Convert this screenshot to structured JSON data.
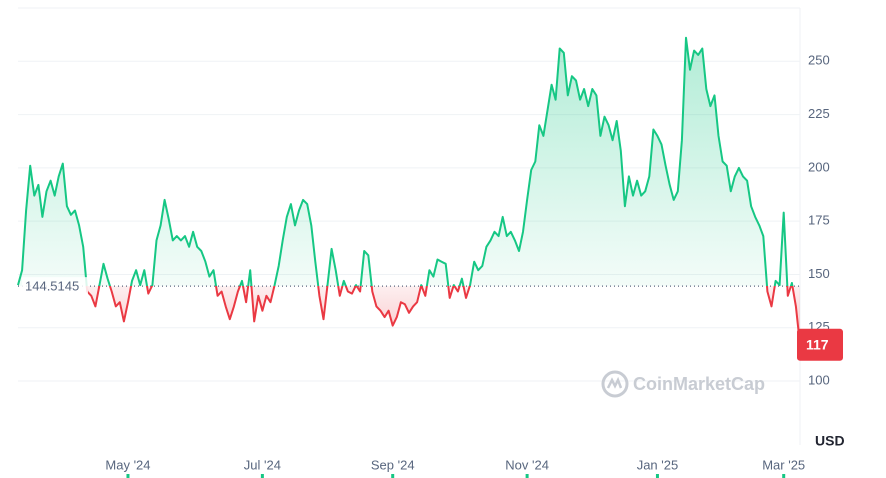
{
  "chart_data": {
    "type": "line",
    "values": [
      145,
      152,
      180,
      201,
      187,
      192,
      177,
      189,
      194,
      187,
      196,
      202,
      182,
      178,
      180,
      173,
      163,
      142,
      140,
      135,
      145,
      155,
      148,
      142,
      135,
      137,
      128,
      137,
      147,
      152,
      145,
      152,
      141,
      145,
      166,
      173,
      185,
      176,
      166,
      168,
      166,
      168,
      163,
      170,
      163,
      161,
      156,
      149,
      152,
      140,
      142,
      135,
      129,
      135,
      142,
      147,
      137,
      152,
      128,
      140,
      133,
      140,
      137,
      145,
      154,
      166,
      177,
      183,
      173,
      180,
      185,
      183,
      173,
      156,
      140,
      129,
      145,
      162,
      152,
      140,
      147,
      142,
      141,
      145,
      142,
      161,
      159,
      142,
      135,
      133,
      130,
      133,
      126,
      130,
      137,
      136,
      132,
      135,
      137,
      145,
      140,
      152,
      149,
      157,
      156,
      155,
      139,
      145,
      142,
      148,
      139,
      145,
      156,
      152,
      154,
      163,
      166,
      170,
      168,
      177,
      168,
      170,
      166,
      161,
      170,
      185,
      199,
      203,
      220,
      215,
      227,
      239,
      232,
      256,
      254,
      234,
      243,
      241,
      232,
      237,
      229,
      237,
      234,
      215,
      224,
      220,
      213,
      222,
      208,
      182,
      196,
      187,
      194,
      187,
      189,
      196,
      218,
      215,
      211,
      201,
      192,
      185,
      189,
      213,
      261,
      246,
      255,
      253,
      256,
      237,
      229,
      234,
      215,
      203,
      201,
      189,
      196,
      200,
      196,
      194,
      182,
      177,
      173,
      168,
      142,
      135,
      147,
      145,
      179,
      140,
      146,
      135,
      117
    ],
    "baseline": 144.5145,
    "up_color": "#16c784",
    "down_color": "#ea3943",
    "xlim": [
      0,
      192
    ],
    "xticks": [
      {
        "value": 27,
        "label": "May '24"
      },
      {
        "value": 60,
        "label": "Jul '24"
      },
      {
        "value": 92,
        "label": "Sep '24"
      },
      {
        "value": 125,
        "label": "Nov '24"
      },
      {
        "value": 157,
        "label": "Jan '25"
      },
      {
        "value": 188,
        "label": "Mar '25"
      }
    ],
    "ylim": [
      70,
      275
    ],
    "yticks": [
      100,
      125,
      150,
      175,
      200,
      225,
      250
    ],
    "grid": true,
    "currency": "USD",
    "watermark": "CoinMarketCap"
  }
}
